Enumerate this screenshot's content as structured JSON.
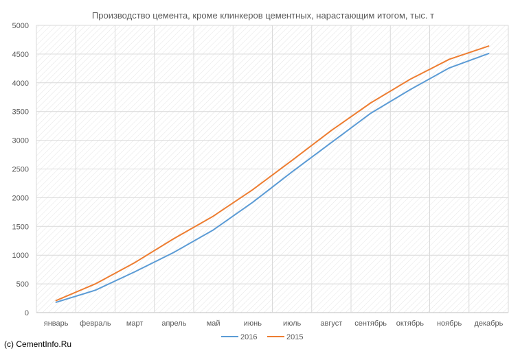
{
  "chart_data": {
    "type": "line",
    "title": "Производство цемента, кроме клинкеров цементных, нарастающим итогом, тыс. т",
    "xlabel": "",
    "ylabel": "",
    "categories": [
      "январь",
      "февраль",
      "март",
      "апрель",
      "май",
      "июнь",
      "июль",
      "август",
      "сентябрь",
      "октябрь",
      "ноябрь",
      "декабрь"
    ],
    "ylim": [
      0,
      5000
    ],
    "yticks": [
      0,
      500,
      1000,
      1500,
      2000,
      2500,
      3000,
      3500,
      4000,
      4500,
      5000
    ],
    "grid": true,
    "legend_position": "bottom",
    "series": [
      {
        "name": "2016",
        "color": "#5b9bd5",
        "values": [
          180,
          390,
          710,
          1050,
          1440,
          1920,
          2450,
          2960,
          3470,
          3880,
          4260,
          4510
        ]
      },
      {
        "name": "2015",
        "color": "#ed7d31",
        "values": [
          210,
          500,
          870,
          1290,
          1680,
          2140,
          2650,
          3170,
          3650,
          4060,
          4410,
          4640
        ]
      }
    ]
  },
  "footer": {
    "copyright": "(c) CementInfo.Ru"
  }
}
